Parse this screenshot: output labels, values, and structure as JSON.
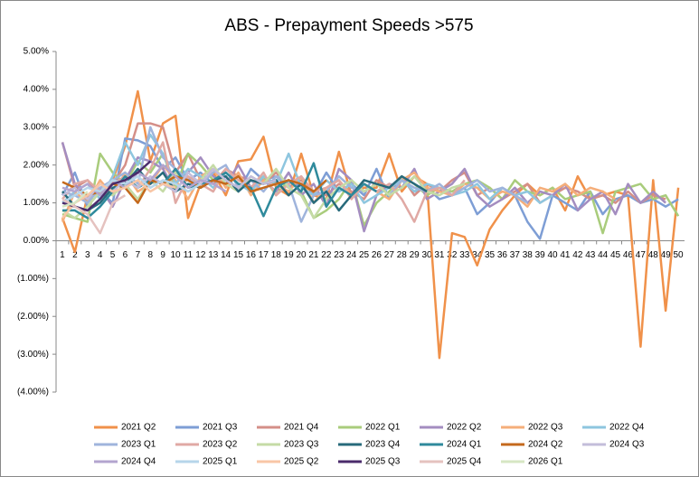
{
  "chart_data": {
    "type": "line",
    "title": "ABS - Prepayment Speeds >575",
    "categories": [
      1,
      2,
      3,
      4,
      5,
      6,
      7,
      8,
      9,
      10,
      11,
      12,
      13,
      14,
      15,
      16,
      17,
      18,
      19,
      20,
      21,
      22,
      23,
      24,
      25,
      26,
      27,
      28,
      29,
      30,
      31,
      32,
      33,
      34,
      35,
      36,
      37,
      38,
      39,
      40,
      41,
      42,
      43,
      44,
      45,
      46,
      47,
      48,
      49,
      50
    ],
    "ylim": [
      -4,
      5
    ],
    "yticks": [
      {
        "value": -4,
        "label": "(4.00%)"
      },
      {
        "value": -3,
        "label": "(3.00%)"
      },
      {
        "value": -2,
        "label": "(2.00%)"
      },
      {
        "value": -1,
        "label": "(1.00%)"
      },
      {
        "value": 0,
        "label": "0.00%"
      },
      {
        "value": 1,
        "label": "1.00%"
      },
      {
        "value": 2,
        "label": "2.00%"
      },
      {
        "value": 3,
        "label": "3.00%"
      },
      {
        "value": 4,
        "label": "4.00%"
      },
      {
        "value": 5,
        "label": "5.00%"
      }
    ],
    "grid": false,
    "legend": "bottom",
    "series": [
      {
        "name": "2021 Q2",
        "color": "#f0914a",
        "values": [
          0.6,
          -0.3,
          1.2,
          1.3,
          1.6,
          2.5,
          3.95,
          2.1,
          3.1,
          3.3,
          0.6,
          1.5,
          1.8,
          1.2,
          2.1,
          2.15,
          2.75,
          1.4,
          1.2,
          2.3,
          1.2,
          1.1,
          2.35,
          1.2,
          1.4,
          1.4,
          2.3,
          1.3,
          1.7,
          1.5,
          -3.1,
          0.2,
          0.1,
          -0.65,
          0.3,
          0.8,
          1.2,
          1.5,
          1.2,
          1.4,
          0.8,
          1.7,
          1.1,
          1.2,
          1.3,
          1.2,
          -2.8,
          1.6,
          -1.85,
          1.4
        ]
      },
      {
        "name": "2021 Q3",
        "color": "#7e9ed5",
        "values": [
          1.2,
          1.8,
          0.9,
          1.3,
          1.0,
          2.7,
          2.65,
          2.5,
          1.9,
          2.2,
          1.6,
          1.8,
          1.5,
          1.7,
          1.3,
          1.9,
          1.6,
          1.7,
          1.4,
          1.5,
          1.2,
          1.8,
          1.3,
          1.5,
          1.2,
          1.9,
          1.1,
          1.6,
          1.3,
          1.4,
          1.1,
          1.2,
          1.4,
          0.7,
          1.0,
          1.4,
          1.2,
          0.5,
          0.05,
          1.2,
          1.0,
          0.8,
          1.3,
          0.7,
          1.1,
          1.2,
          1.0,
          1.1,
          0.9,
          1.1
        ]
      },
      {
        "name": "2021 Q4",
        "color": "#d48f88",
        "values": [
          2.6,
          1.4,
          1.6,
          1.2,
          1.5,
          2.0,
          3.1,
          3.1,
          3.0,
          1.8,
          2.3,
          1.6,
          1.5,
          1.9,
          1.7,
          1.6,
          1.5,
          1.8,
          1.4,
          1.6,
          1.3,
          1.2,
          1.5,
          1.3,
          1.1,
          1.6,
          1.4,
          1.7,
          1.2,
          1.5,
          1.3,
          1.6,
          1.8,
          1.2,
          1.4,
          1.1,
          1.3,
          1.5,
          1.0,
          1.2,
          1.4,
          1.3,
          1.1,
          1.2,
          1.0,
          1.3,
          1.0,
          1.2,
          1.1,
          null
        ]
      },
      {
        "name": "2022 Q1",
        "color": "#a9cc7c",
        "values": [
          0.7,
          0.6,
          0.5,
          2.3,
          1.8,
          1.5,
          2.1,
          1.8,
          2.3,
          1.4,
          2.3,
          2.0,
          1.6,
          1.8,
          1.5,
          1.4,
          1.7,
          1.2,
          1.6,
          1.3,
          0.6,
          0.8,
          1.1,
          1.6,
          0.4,
          1.0,
          1.3,
          1.7,
          1.5,
          1.2,
          1.4,
          1.3,
          1.5,
          1.6,
          1.4,
          1.1,
          1.6,
          1.3,
          1.2,
          1.4,
          1.1,
          1.2,
          1.3,
          0.2,
          1.3,
          1.4,
          1.5,
          1.1,
          1.2,
          0.65
        ]
      },
      {
        "name": "2022 Q2",
        "color": "#a48dc0",
        "values": [
          2.6,
          1.5,
          1.1,
          1.4,
          0.9,
          1.6,
          2.2,
          2.1,
          1.9,
          1.3,
          1.8,
          2.2,
          1.7,
          1.5,
          2.0,
          1.4,
          1.6,
          1.3,
          1.8,
          1.2,
          1.5,
          0.9,
          1.9,
          1.6,
          0.25,
          1.2,
          1.5,
          1.4,
          1.9,
          1.1,
          1.3,
          1.5,
          1.9,
          1.2,
          0.9,
          1.1,
          1.4,
          1.0,
          1.3,
          1.2,
          1.5,
          0.8,
          1.1,
          1.3,
          0.7,
          1.5,
          1.0,
          1.3,
          1.0,
          null
        ]
      },
      {
        "name": "2022 Q3",
        "color": "#f5ae7a",
        "values": [
          0.5,
          1.3,
          1.0,
          1.6,
          1.2,
          1.8,
          1.3,
          1.5,
          2.0,
          1.6,
          1.1,
          1.7,
          1.9,
          1.4,
          1.8,
          1.2,
          1.6,
          1.5,
          1.3,
          1.7,
          1.0,
          1.4,
          1.6,
          1.2,
          1.5,
          1.3,
          1.1,
          1.6,
          1.8,
          1.4,
          1.3,
          1.2,
          1.5,
          1.4,
          1.1,
          1.3,
          1.2,
          0.9,
          1.4,
          1.3,
          1.5,
          1.2,
          1.4,
          1.3,
          1.1,
          null,
          null,
          null,
          null,
          null
        ]
      },
      {
        "name": "2022 Q4",
        "color": "#8ec6df",
        "values": [
          1.0,
          1.3,
          1.5,
          1.1,
          1.7,
          2.6,
          2.0,
          2.8,
          2.3,
          1.5,
          1.9,
          1.7,
          1.4,
          1.8,
          1.5,
          1.3,
          1.7,
          1.5,
          2.3,
          1.4,
          1.2,
          1.6,
          1.3,
          1.5,
          1.0,
          1.2,
          1.4,
          1.6,
          1.3,
          1.5,
          1.4,
          1.2,
          1.3,
          1.5,
          1.1,
          1.4,
          1.2,
          1.3,
          1.0,
          1.2,
          null,
          null,
          null,
          null,
          null,
          null,
          null,
          null,
          null,
          null
        ]
      },
      {
        "name": "2023 Q1",
        "color": "#9fb4dc",
        "values": [
          1.3,
          1.2,
          1.0,
          1.4,
          1.6,
          1.8,
          1.5,
          3.0,
          2.2,
          1.9,
          1.6,
          1.5,
          1.8,
          2.0,
          1.4,
          1.6,
          1.3,
          1.7,
          1.5,
          0.5,
          1.2,
          1.3,
          1.7,
          1.4,
          1.3,
          1.5,
          1.2,
          1.6,
          1.4,
          1.3,
          1.5,
          1.2,
          1.4,
          1.6,
          1.3,
          1.4,
          1.2,
          1.0,
          null,
          null,
          null,
          null,
          null,
          null,
          null,
          null,
          null,
          null,
          null,
          null
        ]
      },
      {
        "name": "2023 Q2",
        "color": "#e0a9a4",
        "values": [
          1.1,
          1.5,
          1.6,
          1.3,
          1.5,
          1.7,
          1.4,
          1.9,
          2.6,
          1.0,
          1.7,
          1.5,
          1.3,
          1.9,
          1.6,
          1.4,
          1.8,
          1.2,
          1.5,
          1.7,
          1.3,
          1.4,
          1.6,
          1.1,
          1.5,
          1.3,
          1.5,
          1.1,
          0.5,
          1.3,
          1.4,
          1.2,
          1.6,
          null,
          null,
          null,
          null,
          null,
          null,
          null,
          null,
          null,
          null,
          null,
          null,
          null,
          null,
          null,
          null,
          null
        ]
      },
      {
        "name": "2023 Q3",
        "color": "#c5dba6",
        "values": [
          0.8,
          0.6,
          0.9,
          1.3,
          1.2,
          1.5,
          1.1,
          1.6,
          1.3,
          1.8,
          1.4,
          1.6,
          2.0,
          1.5,
          1.3,
          1.7,
          1.5,
          1.9,
          1.4,
          1.2,
          0.6,
          1.1,
          1.4,
          1.6,
          1.3,
          1.5,
          1.2,
          1.4,
          1.7,
          1.3,
          1.2,
          1.4,
          1.5,
          null,
          null,
          null,
          null,
          null,
          null,
          null,
          null,
          null,
          null,
          null,
          null,
          null,
          null,
          null,
          null,
          null
        ]
      },
      {
        "name": "2023 Q4",
        "color": "#276a7b",
        "values": [
          1.3,
          0.9,
          0.8,
          1.0,
          1.4,
          1.5,
          1.9,
          1.5,
          1.8,
          1.3,
          1.5,
          1.4,
          1.6,
          1.7,
          1.3,
          1.6,
          1.5,
          1.6,
          1.2,
          1.5,
          1.0,
          1.3,
          0.8,
          1.2,
          1.6,
          1.5,
          1.4,
          1.7,
          1.5,
          1.3,
          null,
          null,
          null,
          null,
          null,
          null,
          null,
          null,
          null,
          null,
          null,
          null,
          null,
          null,
          null,
          null,
          null,
          null,
          null,
          null
        ]
      },
      {
        "name": "2024 Q1",
        "color": "#2f8a9c",
        "values": [
          0.8,
          0.8,
          0.6,
          0.9,
          1.3,
          1.7,
          1.4,
          1.6,
          1.5,
          1.9,
          1.4,
          1.5,
          1.6,
          1.8,
          1.5,
          1.4,
          0.65,
          1.4,
          1.6,
          1.3,
          2.05,
          0.9,
          1.4,
          1.2,
          1.5,
          1.3,
          null,
          null,
          null,
          null,
          null,
          null,
          null,
          null,
          null,
          null,
          null,
          null,
          null,
          null,
          null,
          null,
          null,
          null,
          null,
          null,
          null,
          null,
          null,
          null
        ]
      },
      {
        "name": "2024 Q2",
        "color": "#c4691c",
        "values": [
          1.55,
          1.4,
          1.2,
          1.3,
          1.5,
          1.4,
          1.0,
          1.6,
          1.5,
          1.7,
          1.6,
          1.4,
          1.6,
          1.5,
          1.7,
          1.3,
          1.4,
          1.5,
          1.6,
          1.5,
          1.3,
          1.6,
          null,
          null,
          null,
          null,
          null,
          null,
          null,
          null,
          null,
          null,
          null,
          null,
          null,
          null,
          null,
          null,
          null,
          null,
          null,
          null,
          null,
          null,
          null,
          null,
          null,
          null,
          null,
          null
        ]
      },
      {
        "name": "2024 Q3",
        "color": "#c3bdda",
        "values": [
          1.2,
          1.4,
          1.1,
          1.5,
          1.3,
          1.6,
          1.4,
          1.7,
          1.5,
          1.3,
          1.8,
          1.5,
          1.9,
          1.6,
          1.4,
          1.7,
          1.5,
          1.6,
          null,
          null,
          null,
          null,
          null,
          null,
          null,
          null,
          null,
          null,
          null,
          null,
          null,
          null,
          null,
          null,
          null,
          null,
          null,
          null,
          null,
          null,
          null,
          null,
          null,
          null,
          null,
          null,
          null,
          null,
          null,
          null
        ]
      },
      {
        "name": "2024 Q4",
        "color": "#b3a4cf",
        "values": [
          1.4,
          1.3,
          1.5,
          1.2,
          1.6,
          1.4,
          1.8,
          1.6,
          2.0,
          1.7,
          1.4,
          1.6,
          1.5,
          1.3,
          null,
          null,
          null,
          null,
          null,
          null,
          null,
          null,
          null,
          null,
          null,
          null,
          null,
          null,
          null,
          null,
          null,
          null,
          null,
          null,
          null,
          null,
          null,
          null,
          null,
          null,
          null,
          null,
          null,
          null,
          null,
          null,
          null,
          null,
          null,
          null
        ]
      },
      {
        "name": "2025 Q1",
        "color": "#b6d5ea",
        "values": [
          1.0,
          1.2,
          1.4,
          1.3,
          1.6,
          1.5,
          1.7,
          1.4,
          1.6,
          1.5,
          1.3,
          1.5,
          null,
          null,
          null,
          null,
          null,
          null,
          null,
          null,
          null,
          null,
          null,
          null,
          null,
          null,
          null,
          null,
          null,
          null,
          null,
          null,
          null,
          null,
          null,
          null,
          null,
          null,
          null,
          null,
          null,
          null,
          null,
          null,
          null,
          null,
          null,
          null,
          null,
          null
        ]
      },
      {
        "name": "2025 Q2",
        "color": "#f8c6a6",
        "values": [
          0.6,
          1.0,
          1.2,
          1.5,
          1.3,
          1.4,
          1.6,
          1.3,
          1.5,
          1.4,
          null,
          null,
          null,
          null,
          null,
          null,
          null,
          null,
          null,
          null,
          null,
          null,
          null,
          null,
          null,
          null,
          null,
          null,
          null,
          null,
          null,
          null,
          null,
          null,
          null,
          null,
          null,
          null,
          null,
          null,
          null,
          null,
          null,
          null,
          null,
          null,
          null,
          null,
          null,
          null
        ]
      },
      {
        "name": "2025 Q3",
        "color": "#4a2b6b",
        "values": [
          1.0,
          0.9,
          0.8,
          1.1,
          1.5,
          1.6,
          1.8,
          2.1,
          null,
          null,
          null,
          null,
          null,
          null,
          null,
          null,
          null,
          null,
          null,
          null,
          null,
          null,
          null,
          null,
          null,
          null,
          null,
          null,
          null,
          null,
          null,
          null,
          null,
          null,
          null,
          null,
          null,
          null,
          null,
          null,
          null,
          null,
          null,
          null,
          null,
          null,
          null,
          null,
          null,
          null
        ]
      },
      {
        "name": "2025 Q4",
        "color": "#e5c2bf",
        "values": [
          1.1,
          0.9,
          0.7,
          0.2,
          1.0,
          1.2,
          null,
          null,
          null,
          null,
          null,
          null,
          null,
          null,
          null,
          null,
          null,
          null,
          null,
          null,
          null,
          null,
          null,
          null,
          null,
          null,
          null,
          null,
          null,
          null,
          null,
          null,
          null,
          null,
          null,
          null,
          null,
          null,
          null,
          null,
          null,
          null,
          null,
          null,
          null,
          null,
          null,
          null,
          null,
          null
        ]
      },
      {
        "name": "2026 Q1",
        "color": "#d6e6c3",
        "values": [
          0.9,
          1.0,
          1.3,
          null,
          null,
          null,
          null,
          null,
          null,
          null,
          null,
          null,
          null,
          null,
          null,
          null,
          null,
          null,
          null,
          null,
          null,
          null,
          null,
          null,
          null,
          null,
          null,
          null,
          null,
          null,
          null,
          null,
          null,
          null,
          null,
          null,
          null,
          null,
          null,
          null,
          null,
          null,
          null,
          null,
          null,
          null,
          null,
          null,
          null,
          null
        ]
      }
    ]
  }
}
